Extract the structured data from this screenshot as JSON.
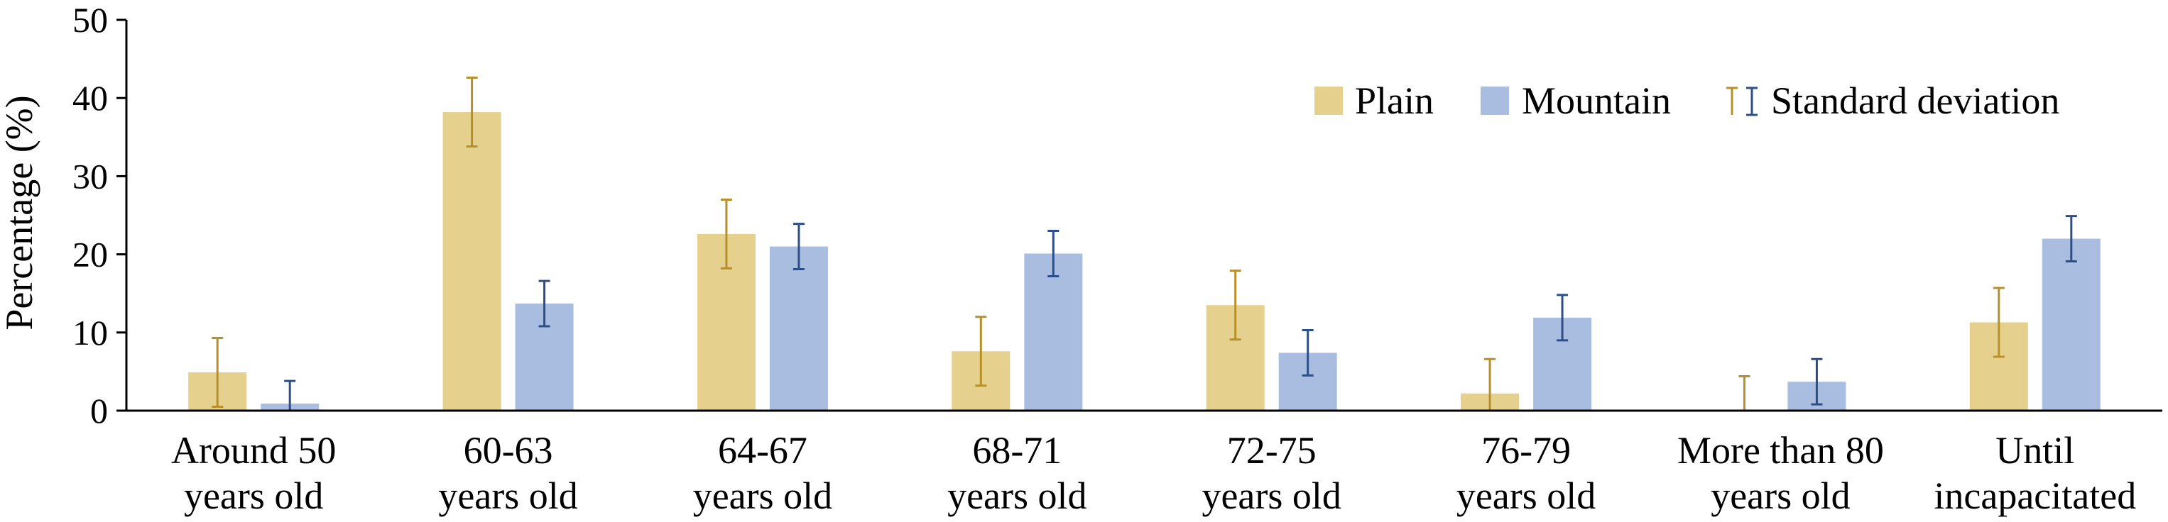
{
  "chart_data": {
    "type": "bar",
    "ylabel": "Percentage (%)",
    "xlabel": "",
    "ylim": [
      0,
      50
    ],
    "yticks": [
      "0",
      "10",
      "20",
      "30",
      "40",
      "50"
    ],
    "grid": false,
    "legend_position": "top-right",
    "categories": [
      [
        "Around 50",
        "years old"
      ],
      [
        "60-63",
        "years old"
      ],
      [
        "64-67",
        "years old"
      ],
      [
        "68-71",
        "years old"
      ],
      [
        "72-75",
        "years old"
      ],
      [
        "76-79",
        "years old"
      ],
      [
        "More than 80",
        "years old"
      ],
      [
        "Until",
        "incapacitated"
      ]
    ],
    "series": [
      {
        "name": "Plain",
        "color": "#e6d08e",
        "error_color": "#b8902a",
        "values": [
          4.9,
          38.2,
          22.6,
          7.6,
          13.5,
          2.2,
          0.0,
          11.3
        ],
        "errors": [
          4.4,
          4.4,
          4.4,
          4.4,
          4.4,
          4.4,
          4.4,
          4.4
        ]
      },
      {
        "name": "Mountain",
        "color": "#a9bde0",
        "error_color": "#2b4f86",
        "values": [
          0.9,
          13.7,
          21.0,
          20.1,
          7.4,
          11.9,
          3.7,
          22.0
        ],
        "errors": [
          2.9,
          2.9,
          2.9,
          2.9,
          2.9,
          2.9,
          2.9,
          2.9
        ]
      }
    ],
    "legend": {
      "plain_label": "Plain",
      "mountain_label": "Mountain",
      "sd_label": "Standard deviation"
    }
  }
}
